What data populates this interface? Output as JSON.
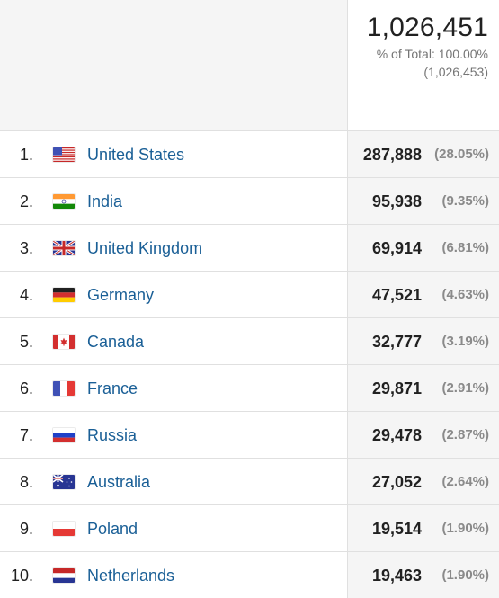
{
  "summary": {
    "total": "1,026,451",
    "pct_of_total": "% of Total: 100.00%",
    "total_raw": "(1,026,453)"
  },
  "rows": [
    {
      "rank": "1.",
      "country": "United States",
      "flag": "flag-us-icon",
      "value": "287,888",
      "pct": "(28.05%)"
    },
    {
      "rank": "2.",
      "country": "India",
      "flag": "flag-in-icon",
      "value": "95,938",
      "pct": "(9.35%)"
    },
    {
      "rank": "3.",
      "country": "United Kingdom",
      "flag": "flag-gb-icon",
      "value": "69,914",
      "pct": "(6.81%)"
    },
    {
      "rank": "4.",
      "country": "Germany",
      "flag": "flag-de-icon",
      "value": "47,521",
      "pct": "(4.63%)"
    },
    {
      "rank": "5.",
      "country": "Canada",
      "flag": "flag-ca-icon",
      "value": "32,777",
      "pct": "(3.19%)"
    },
    {
      "rank": "6.",
      "country": "France",
      "flag": "flag-fr-icon",
      "value": "29,871",
      "pct": "(2.91%)"
    },
    {
      "rank": "7.",
      "country": "Russia",
      "flag": "flag-ru-icon",
      "value": "29,478",
      "pct": "(2.87%)"
    },
    {
      "rank": "8.",
      "country": "Australia",
      "flag": "flag-au-icon",
      "value": "27,052",
      "pct": "(2.64%)"
    },
    {
      "rank": "9.",
      "country": "Poland",
      "flag": "flag-pl-icon",
      "value": "19,514",
      "pct": "(1.90%)"
    },
    {
      "rank": "10.",
      "country": "Netherlands",
      "flag": "flag-nl-icon",
      "value": "19,463",
      "pct": "(1.90%)"
    }
  ],
  "colors": {
    "link": "#1a5f96",
    "header_bg": "#f5f5f5",
    "value_col_bg": "#f5f5f5",
    "muted": "#757575"
  }
}
